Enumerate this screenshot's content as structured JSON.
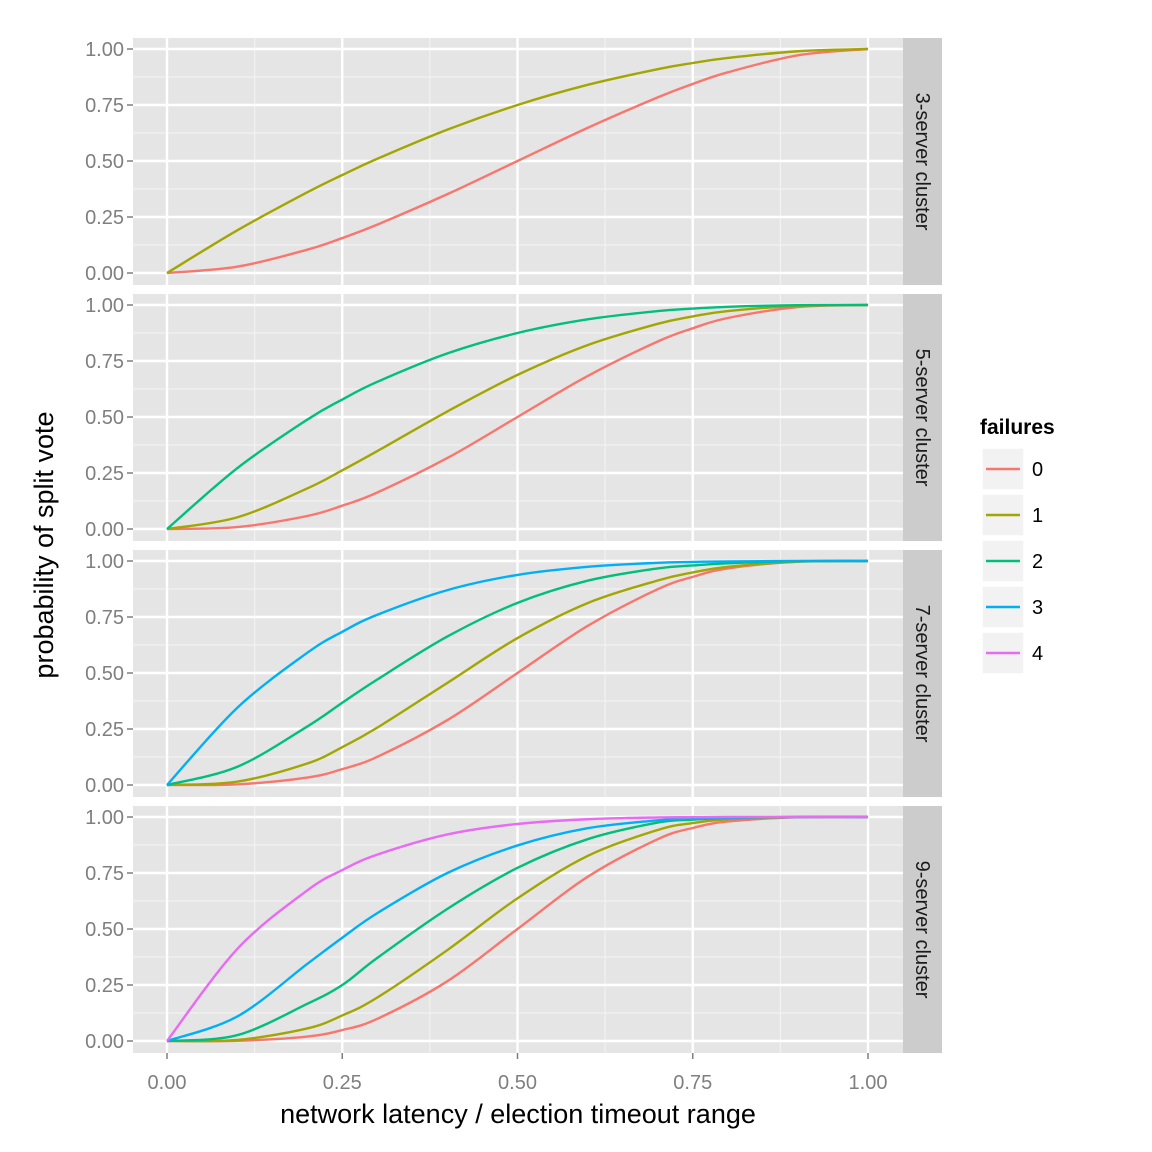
{
  "chart_data": {
    "type": "line",
    "xlabel": "network latency / election timeout range",
    "ylabel": "probability of split vote",
    "xlim": [
      0,
      1
    ],
    "ylim": [
      0,
      1
    ],
    "x_ticks": [
      "0.00",
      "0.25",
      "0.50",
      "0.75",
      "1.00"
    ],
    "y_ticks": [
      "0.00",
      "0.25",
      "0.50",
      "0.75",
      "1.00"
    ],
    "grid": true,
    "legend": {
      "title": "failures",
      "position": "right",
      "entries": [
        {
          "label": "0",
          "color": "#F8766D"
        },
        {
          "label": "1",
          "color": "#A3A500"
        },
        {
          "label": "2",
          "color": "#00BF7D"
        },
        {
          "label": "3",
          "color": "#00B0F6"
        },
        {
          "label": "4",
          "color": "#E76BF3"
        }
      ]
    },
    "x": [
      0,
      0.1,
      0.2,
      0.25,
      0.3,
      0.4,
      0.5,
      0.6,
      0.7,
      0.75,
      0.8,
      0.9,
      1.0
    ],
    "panels": [
      {
        "strip": "3-server cluster",
        "series": [
          {
            "name": "0",
            "color": "#F8766D",
            "values": [
              0,
              0.028,
              0.104,
              0.156,
              0.216,
              0.352,
              0.5,
              0.648,
              0.784,
              0.844,
              0.896,
              0.972,
              1.0
            ]
          },
          {
            "name": "1",
            "color": "#A3A500",
            "values": [
              0,
              0.19,
              0.36,
              0.4375,
              0.51,
              0.64,
              0.75,
              0.84,
              0.91,
              0.9375,
              0.96,
              0.99,
              1.0
            ]
          }
        ]
      },
      {
        "strip": "5-server cluster",
        "series": [
          {
            "name": "0",
            "color": "#F8766D",
            "values": [
              0,
              0.0086,
              0.058,
              0.104,
              0.163,
              0.317,
              0.5,
              0.683,
              0.837,
              0.896,
              0.942,
              0.991,
              1.0
            ]
          },
          {
            "name": "1",
            "color": "#A3A500",
            "values": [
              0,
              0.052,
              0.181,
              0.262,
              0.348,
              0.525,
              0.688,
              0.821,
              0.916,
              0.949,
              0.973,
              0.996,
              1.0
            ]
          },
          {
            "name": "2",
            "color": "#00BF7D",
            "values": [
              0,
              0.271,
              0.488,
              0.578,
              0.657,
              0.784,
              0.875,
              0.936,
              0.973,
              0.984,
              0.992,
              0.999,
              1.0
            ]
          }
        ]
      },
      {
        "strip": "7-server cluster",
        "series": [
          {
            "name": "0",
            "color": "#F8766D",
            "values": [
              0,
              0.0027,
              0.033,
              0.071,
              0.126,
              0.29,
              0.5,
              0.71,
              0.874,
              0.929,
              0.967,
              0.997,
              1.0
            ]
          },
          {
            "name": "1",
            "color": "#A3A500",
            "values": [
              0,
              0.015,
              0.096,
              0.169,
              0.256,
              0.456,
              0.656,
              0.812,
              0.913,
              0.949,
              0.974,
              0.997,
              1.0
            ]
          },
          {
            "name": "2",
            "color": "#00BF7D",
            "values": [
              0,
              0.081,
              0.261,
              0.367,
              0.471,
              0.663,
              0.813,
              0.912,
              0.967,
              0.98,
              0.99,
              0.999,
              1.0
            ]
          },
          {
            "name": "3",
            "color": "#00B0F6",
            "values": [
              0,
              0.344,
              0.59,
              0.684,
              0.76,
              0.87,
              0.938,
              0.974,
              0.992,
              0.996,
              0.998,
              1.0,
              1.0
            ]
          }
        ]
      },
      {
        "strip": "9-server cluster",
        "series": [
          {
            "name": "0",
            "color": "#F8766D",
            "values": [
              0,
              0.0009,
              0.02,
              0.049,
              0.099,
              0.267,
              0.5,
              0.733,
              0.901,
              0.951,
              0.98,
              0.999,
              1.0
            ]
          },
          {
            "name": "1",
            "color": "#A3A500",
            "values": [
              0,
              0.0046,
              0.056,
              0.114,
              0.194,
              0.406,
              0.637,
              0.826,
              0.942,
              0.973,
              0.99,
              0.999,
              1.0
            ]
          },
          {
            "name": "2",
            "color": "#00BF7D",
            "values": [
              0,
              0.026,
              0.166,
              0.25,
              0.371,
              0.59,
              0.773,
              0.901,
              0.975,
              0.988,
              0.996,
              1.0,
              1.0
            ]
          },
          {
            "name": "3",
            "color": "#00B0F6",
            "values": [
              0,
              0.109,
              0.344,
              0.461,
              0.571,
              0.75,
              0.873,
              0.95,
              0.985,
              0.993,
              0.997,
              1.0,
              1.0
            ]
          },
          {
            "name": "4",
            "color": "#E76BF3",
            "values": [
              0,
              0.41,
              0.672,
              0.763,
              0.832,
              0.922,
              0.969,
              0.99,
              0.998,
              0.999,
              1.0,
              1.0,
              1.0
            ]
          }
        ]
      }
    ]
  }
}
